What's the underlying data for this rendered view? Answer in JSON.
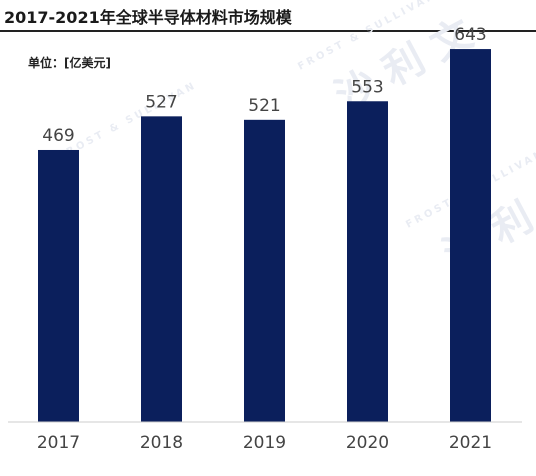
{
  "title": "2017-2021年全球半导体材料市场规模",
  "unit_label": "单位：[亿美元]",
  "watermark": {
    "latin": "FROST & SULLIVAN",
    "chinese": "沙 利 文",
    "color": "#e9ecf3"
  },
  "colors": {
    "bar": "#0b1f5c",
    "axis": "#cccccc"
  },
  "chart_data": {
    "type": "bar",
    "title": "2017-2021年全球半导体材料市场规模",
    "xlabel": "",
    "ylabel": "单位：[亿美元]",
    "categories": [
      "2017",
      "2018",
      "2019",
      "2020",
      "2021"
    ],
    "values": [
      469,
      527,
      521,
      553,
      643
    ],
    "value_labels": [
      "469",
      "527",
      "521",
      "553",
      "643"
    ],
    "ylim": [
      0,
      700
    ],
    "grid": false,
    "legend": "none"
  }
}
